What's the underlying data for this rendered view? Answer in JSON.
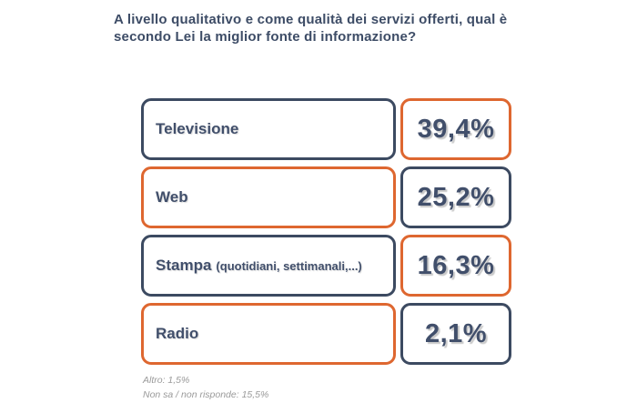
{
  "title": "A livello qualitativo e come qualità dei servizi offerti, qual è secondo Lei la miglior fonte di informazione?",
  "chart_data": {
    "type": "bar",
    "title": "A livello qualitativo e come qualità dei servizi offerti, qual è secondo Lei la miglior fonte di informazione?",
    "categories": [
      "Televisione",
      "Web",
      "Stampa (quotidiani, settimanali,...)",
      "Radio"
    ],
    "values": [
      39.4,
      25.2,
      16.3,
      2.1
    ],
    "value_labels": [
      "39,4%",
      "25,2%",
      "16,3%",
      "2,1%"
    ],
    "unit": "%",
    "legend": false,
    "grid": false,
    "annotations": [
      "Altro: 1,5%",
      "Non sa / non risponde: 15,5%"
    ]
  },
  "rows": [
    {
      "label": "Televisione",
      "suffix": "",
      "value": "39,4%"
    },
    {
      "label": "Web",
      "suffix": "",
      "value": "25,2%"
    },
    {
      "label": "Stampa",
      "suffix": "(quotidiani, settimanali,...)",
      "value": "16,3%"
    },
    {
      "label": "Radio",
      "suffix": "",
      "value": "2,1%"
    }
  ],
  "footnotes": {
    "altro": "Altro: 1,5%",
    "non_sa": "Non sa / non risponde: 15,5%"
  },
  "colors": {
    "navy_border": "#3C4A61",
    "orange_border": "#DE6730",
    "text_navy": "#414F6B",
    "title_navy": "#3D4C66",
    "footnote_gray": "#9A9A9A",
    "background": "#FFFFFF"
  }
}
